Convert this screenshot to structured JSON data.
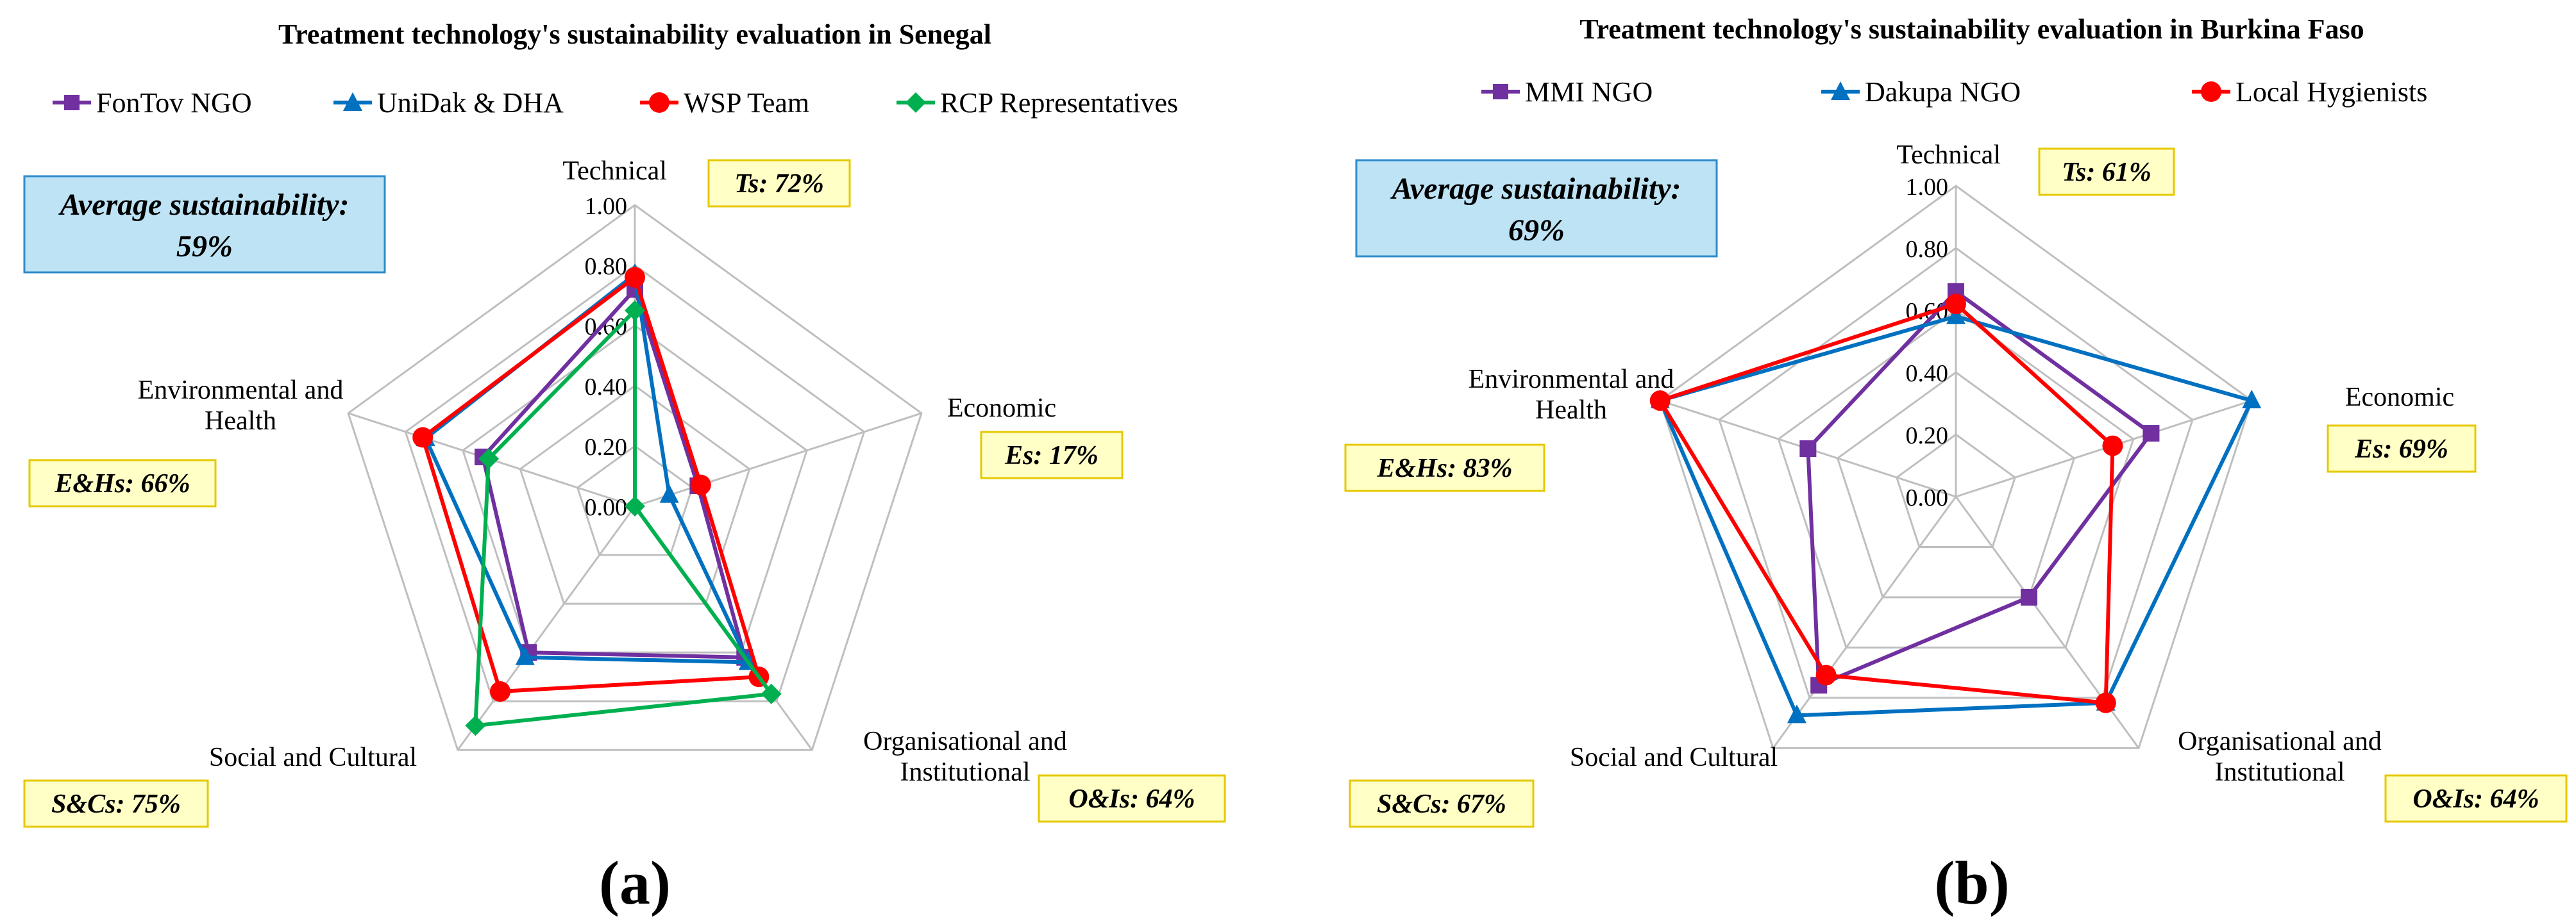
{
  "panels": [
    {
      "label": "(a)",
      "average_box": {
        "line1": "Average sustainability:",
        "line2": "59%"
      },
      "chart_data": {
        "type": "radar",
        "title": "Treatment technology's sustainability evaluation in Senegal",
        "axes": [
          "Technical",
          "Economic",
          "Organisational and Institutional",
          "Social and Cultural",
          "Environmental and Health"
        ],
        "axis_label_lines": [
          [
            "Technical"
          ],
          [
            "Economic"
          ],
          [
            "Organisational and",
            "Institutional"
          ],
          [
            "Social and Cultural"
          ],
          [
            "Environmental and",
            "Health"
          ]
        ],
        "ticks": [
          "0.00",
          "0.20",
          "0.40",
          "0.60",
          "0.80",
          "1.00"
        ],
        "range": [
          0,
          1
        ],
        "axis_scores": [
          "Ts:  72%",
          "Es:  17%",
          "O&Is:  64%",
          "S&Cs:  75%",
          "E&Hs:  66%"
        ],
        "legend_position": "top",
        "series": [
          {
            "name": "FonTov NGO",
            "color": "#7030A0",
            "marker": "square",
            "values": [
              0.72,
              0.22,
              0.62,
              0.6,
              0.53
            ]
          },
          {
            "name": "UniDak & DHA",
            "color": "#0070C0",
            "marker": "triangle",
            "values": [
              0.77,
              0.12,
              0.64,
              0.62,
              0.73
            ]
          },
          {
            "name": "WSP Team",
            "color": "#FF0000",
            "marker": "circle",
            "values": [
              0.76,
              0.23,
              0.7,
              0.76,
              0.74
            ]
          },
          {
            "name": "RCP Representatives",
            "color": "#00B050",
            "marker": "diamond",
            "values": [
              0.65,
              0.0,
              0.77,
              0.9,
              0.51
            ]
          }
        ]
      }
    },
    {
      "label": "(b)",
      "average_box": {
        "line1": "Average sustainability:",
        "line2": "69%"
      },
      "chart_data": {
        "type": "radar",
        "title": "Treatment technology's sustainability evaluation in Burkina Faso",
        "axes": [
          "Technical",
          "Economic",
          "Organisational and Institutional",
          "Social and Cultural",
          "Environmental and Health"
        ],
        "axis_label_lines": [
          [
            "Technical"
          ],
          [
            "Economic"
          ],
          [
            "Organisational and",
            "Institutional"
          ],
          [
            "Social and Cultural"
          ],
          [
            "Environmental and",
            "Health"
          ]
        ],
        "ticks": [
          "0.00",
          "0.20",
          "0.40",
          "0.60",
          "0.80",
          "1.00"
        ],
        "range": [
          0,
          1
        ],
        "axis_scores": [
          "Ts:  61%",
          "Es:  69%",
          "O&Is:  64%",
          "S&Cs:  67%",
          "E&Hs:  83%"
        ],
        "legend_position": "top",
        "series": [
          {
            "name": "MMI NGO",
            "color": "#7030A0",
            "marker": "square",
            "values": [
              0.66,
              0.66,
              0.4,
              0.75,
              0.5
            ]
          },
          {
            "name": "Dakupa NGO",
            "color": "#0070C0",
            "marker": "triangle",
            "values": [
              0.58,
              1.0,
              0.82,
              0.87,
              1.0
            ]
          },
          {
            "name": "Local Hygienists",
            "color": "#FF0000",
            "marker": "circle",
            "values": [
              0.62,
              0.53,
              0.82,
              0.71,
              1.0
            ]
          }
        ]
      }
    }
  ]
}
